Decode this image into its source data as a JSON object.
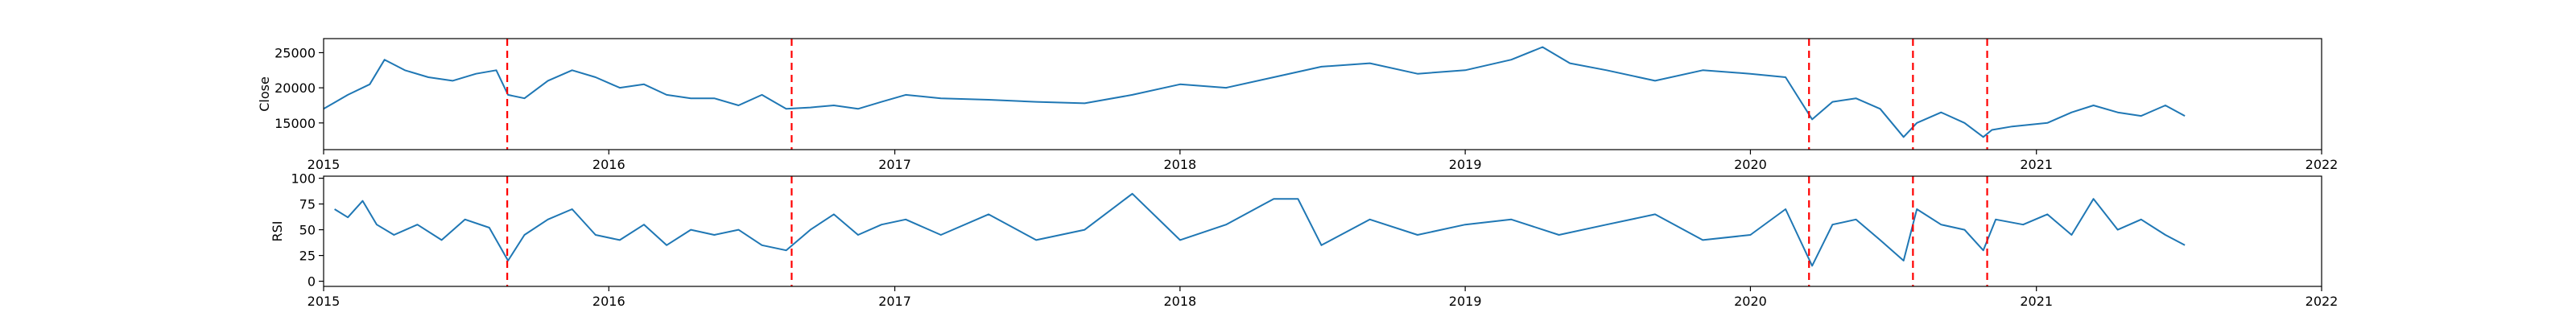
{
  "chart_data": [
    {
      "type": "line",
      "ylabel": "Close",
      "xlim": [
        "2015-01-01",
        "2022-01-01"
      ],
      "ylim": [
        11200,
        27000
      ],
      "x_ticks": [
        "2015",
        "2016",
        "2017",
        "2018",
        "2019",
        "2020",
        "2021",
        "2022"
      ],
      "y_ticks": [
        15000,
        20000,
        25000
      ],
      "grid": false,
      "line_color": "#1f77b4",
      "series": [
        {
          "x": [
            "2015-01-01",
            "2015-02-01",
            "2015-03-01",
            "2015-03-20",
            "2015-04-15",
            "2015-05-15",
            "2015-06-15",
            "2015-07-15",
            "2015-08-10",
            "2015-08-25",
            "2015-09-15",
            "2015-10-15",
            "2015-11-15",
            "2015-12-15",
            "2016-01-15",
            "2016-02-15",
            "2016-03-15",
            "2016-04-15",
            "2016-05-15",
            "2016-06-15",
            "2016-07-15",
            "2016-08-15",
            "2016-09-15",
            "2016-10-15",
            "2016-11-15",
            "2016-12-15",
            "2017-01-15",
            "2017-03-01",
            "2017-05-01",
            "2017-07-01",
            "2017-09-01",
            "2017-11-01",
            "2018-01-01",
            "2018-03-01",
            "2018-05-01",
            "2018-07-01",
            "2018-09-01",
            "2018-11-01",
            "2019-01-01",
            "2019-03-01",
            "2019-04-10",
            "2019-05-15",
            "2019-07-01",
            "2019-09-01",
            "2019-11-01",
            "2020-01-01",
            "2020-02-15",
            "2020-03-20",
            "2020-04-15",
            "2020-05-15",
            "2020-06-15",
            "2020-07-15",
            "2020-08-01",
            "2020-09-01",
            "2020-10-01",
            "2020-10-25",
            "2020-11-05",
            "2020-12-01",
            "2021-01-15",
            "2021-02-15",
            "2021-03-15",
            "2021-04-15",
            "2021-05-15",
            "2021-06-15",
            "2021-07-10"
          ],
          "values": [
            17000,
            19000,
            20500,
            24000,
            22500,
            21500,
            21000,
            22000,
            22500,
            19000,
            18500,
            21000,
            22500,
            21500,
            20000,
            20500,
            19000,
            18500,
            18500,
            17500,
            19000,
            17000,
            17200,
            17500,
            17000,
            18000,
            19000,
            18500,
            18300,
            18000,
            17800,
            19000,
            20500,
            20000,
            21500,
            23000,
            23500,
            22000,
            22500,
            24000,
            25800,
            23500,
            22500,
            21000,
            22500,
            22000,
            21500,
            15500,
            18000,
            18500,
            17000,
            13000,
            15000,
            16500,
            15000,
            13000,
            14000,
            14500,
            15000,
            16500,
            17500,
            16500,
            16000,
            17500,
            16000
          ]
        }
      ]
    },
    {
      "type": "line",
      "ylabel": "RSI",
      "xlim": [
        "2015-01-01",
        "2022-01-01"
      ],
      "ylim": [
        -5,
        102
      ],
      "x_ticks": [
        "2015",
        "2016",
        "2017",
        "2018",
        "2019",
        "2020",
        "2021",
        "2022"
      ],
      "y_ticks": [
        0,
        25,
        50,
        75,
        100
      ],
      "grid": false,
      "line_color": "#1f77b4",
      "series": [
        {
          "x": [
            "2015-01-15",
            "2015-02-01",
            "2015-02-20",
            "2015-03-10",
            "2015-04-01",
            "2015-05-01",
            "2015-06-01",
            "2015-07-01",
            "2015-08-01",
            "2015-08-25",
            "2015-09-15",
            "2015-10-15",
            "2015-11-15",
            "2015-12-15",
            "2016-01-15",
            "2016-02-15",
            "2016-03-15",
            "2016-04-15",
            "2016-05-15",
            "2016-06-15",
            "2016-07-15",
            "2016-08-15",
            "2016-09-15",
            "2016-10-15",
            "2016-11-15",
            "2016-12-15",
            "2017-01-15",
            "2017-03-01",
            "2017-05-01",
            "2017-07-01",
            "2017-09-01",
            "2017-11-01",
            "2018-01-01",
            "2018-03-01",
            "2018-05-01",
            "2018-06-01",
            "2018-07-01",
            "2018-09-01",
            "2018-11-01",
            "2019-01-01",
            "2019-03-01",
            "2019-05-01",
            "2019-07-01",
            "2019-09-01",
            "2019-11-01",
            "2020-01-01",
            "2020-02-15",
            "2020-03-20",
            "2020-04-15",
            "2020-05-15",
            "2020-06-15",
            "2020-07-15",
            "2020-08-01",
            "2020-09-01",
            "2020-10-01",
            "2020-10-25",
            "2020-11-10",
            "2020-12-15",
            "2021-01-15",
            "2021-02-15",
            "2021-03-15",
            "2021-04-15",
            "2021-05-15",
            "2021-06-15",
            "2021-07-10"
          ],
          "values": [
            70,
            62,
            78,
            55,
            45,
            55,
            40,
            60,
            52,
            20,
            45,
            60,
            70,
            45,
            40,
            55,
            35,
            50,
            45,
            50,
            35,
            30,
            50,
            65,
            45,
            55,
            60,
            45,
            65,
            40,
            50,
            85,
            40,
            55,
            80,
            80,
            35,
            60,
            45,
            55,
            60,
            45,
            55,
            65,
            40,
            45,
            70,
            15,
            55,
            60,
            40,
            20,
            70,
            55,
            50,
            30,
            60,
            55,
            65,
            45,
            80,
            50,
            60,
            45,
            35
          ]
        }
      ]
    }
  ],
  "event_lines": {
    "color": "#ff0000",
    "dates": [
      "2015-08-24",
      "2016-08-22",
      "2020-03-16",
      "2020-07-27",
      "2020-10-30"
    ]
  }
}
